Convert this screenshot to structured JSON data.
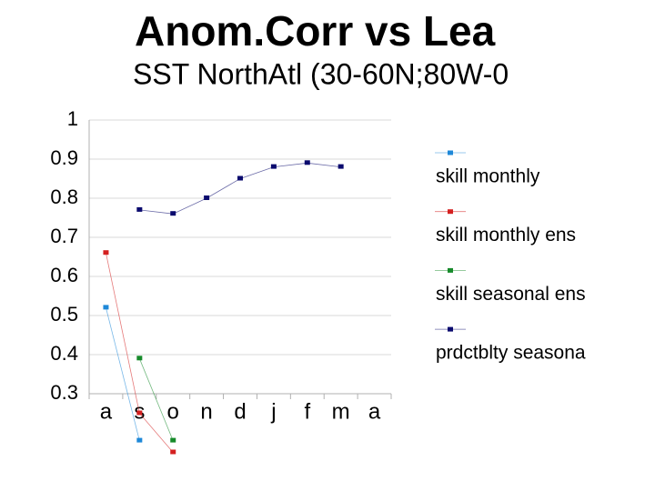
{
  "chart_data": {
    "type": "line",
    "title": "Anom.Corr vs Lea",
    "subtitle": "SST NorthAtl (30-60N;80W-0",
    "categories": [
      "a",
      "s",
      "o",
      "n",
      "d",
      "j",
      "f",
      "m",
      "a"
    ],
    "series": [
      {
        "name": "skill monthly",
        "color": "#1e88d8",
        "values": [
          0.52,
          0.18,
          null,
          null,
          null,
          null,
          null,
          null,
          null
        ]
      },
      {
        "name": "skill monthly ens",
        "color": "#d42020",
        "values": [
          0.66,
          0.25,
          0.15,
          null,
          null,
          null,
          null,
          null,
          null
        ]
      },
      {
        "name": "skill seasonal ens",
        "color": "#168a2a",
        "values": [
          null,
          0.39,
          0.18,
          null,
          null,
          null,
          null,
          null,
          null
        ]
      },
      {
        "name": "prdctblty seasona",
        "color": "#0a0a6e",
        "values": [
          null,
          0.77,
          0.76,
          0.8,
          0.85,
          0.88,
          0.89,
          0.88,
          null
        ]
      }
    ],
    "ylim": [
      0.3,
      1
    ],
    "yticks": [
      0.3,
      0.4,
      0.5,
      0.6,
      0.7,
      0.8,
      0.9,
      1
    ],
    "grid": true
  }
}
